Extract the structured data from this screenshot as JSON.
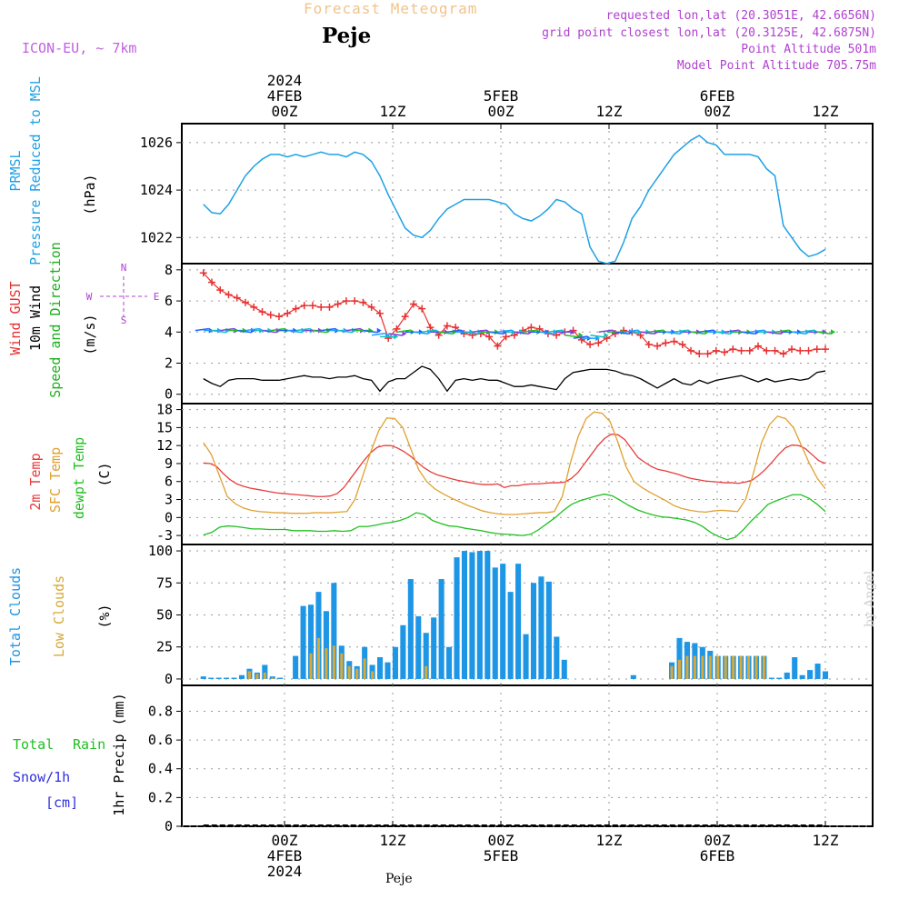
{
  "header": {
    "title": "Forecast Meteogram",
    "location": "Peje",
    "model": "ICON-EU, ~ 7km",
    "requested": "requested lon,lat (20.3051E, 42.6656N)",
    "grid_point": "grid point closest lon,lat (20.3125E, 42.6875N)",
    "point_altitude": "Point Altitude 501m",
    "model_altitude": "Model Point Altitude 705.75m"
  },
  "footer": {
    "location": "Peje",
    "credit": "by Angel"
  },
  "time_axis": {
    "unit": "hours since 2024-02-03 15Z",
    "range": [
      0,
      69
    ],
    "ticks": [
      {
        "t": 9,
        "line1": "00Z",
        "line2": "4FEB",
        "line3": "2024"
      },
      {
        "t": 21,
        "line1": "12Z",
        "line2": "",
        "line3": ""
      },
      {
        "t": 33,
        "line1": "00Z",
        "line2": "5FEB",
        "line3": ""
      },
      {
        "t": 45,
        "line1": "12Z",
        "line2": "",
        "line3": ""
      },
      {
        "t": 57,
        "line1": "00Z",
        "line2": "6FEB",
        "line3": ""
      },
      {
        "t": 69,
        "line1": "12Z",
        "line2": "",
        "line3": ""
      }
    ]
  },
  "colors": {
    "pressure": "#1ea0e6",
    "gust": "#e83030",
    "wind": "#000000",
    "temp": "#e83c3c",
    "sfc": "#e0a030",
    "dew": "#20c020",
    "total_clouds": "#1e96e6",
    "low_clouds": "#d8a838",
    "rain": "#20c020",
    "snow": "#3030e0",
    "compass": "#b040d0"
  },
  "chart_data": [
    {
      "type": "line",
      "panel": "pressure",
      "left_labels": [
        "PRMSL",
        "Pressure Reduced to MSL"
      ],
      "ylabel": "(hPa)",
      "yticks": [
        1022,
        1024,
        1026
      ],
      "ylim": [
        1020.9,
        1026.8
      ],
      "series": [
        {
          "name": "PRMSL",
          "values": [
            1023.4,
            1023.05,
            1023.0,
            1023.4,
            1024.0,
            1024.6,
            1025.0,
            1025.3,
            1025.5,
            1025.5,
            1025.4,
            1025.5,
            1025.4,
            1025.5,
            1025.6,
            1025.5,
            1025.5,
            1025.4,
            1025.6,
            1025.5,
            1025.2,
            1024.6,
            1023.8,
            1023.1,
            1022.4,
            1022.1,
            1022.0,
            1022.3,
            1022.8,
            1023.2,
            1023.4,
            1023.6,
            1023.6,
            1023.6,
            1023.6,
            1023.5,
            1023.4,
            1023.0,
            1022.8,
            1022.7,
            1022.9,
            1023.2,
            1023.6,
            1023.5,
            1023.2,
            1023.0,
            1021.6,
            1021.0,
            1020.9,
            1021.0,
            1021.8,
            1022.8,
            1023.3,
            1024.0,
            1024.5,
            1025.0,
            1025.5,
            1025.8,
            1026.1,
            1026.3,
            1026.0,
            1025.9,
            1025.5,
            1025.5,
            1025.5,
            1025.5,
            1025.4,
            1024.9,
            1024.6,
            1022.5,
            1022.0,
            1021.5,
            1021.2,
            1021.3,
            1021.5
          ]
        }
      ]
    },
    {
      "type": "line",
      "panel": "wind",
      "left_labels": [
        "Wind GUST",
        "10m Wind",
        "Speed and Direction"
      ],
      "ylabel": "(m/s)",
      "compass": {
        "n": "N",
        "s": "S",
        "e": "E",
        "w": "W"
      },
      "yticks": [
        0,
        2,
        4,
        6,
        8
      ],
      "ylim": [
        -0.6,
        8.4
      ],
      "series": [
        {
          "name": "Wind GUST",
          "values": [
            7.8,
            7.2,
            6.7,
            6.4,
            6.2,
            5.9,
            5.6,
            5.3,
            5.1,
            5.0,
            5.2,
            5.5,
            5.7,
            5.7,
            5.6,
            5.6,
            5.8,
            6.0,
            6.0,
            5.9,
            5.6,
            5.2,
            3.6,
            4.2,
            5.0,
            5.8,
            5.5,
            4.3,
            3.8,
            4.4,
            4.3,
            3.9,
            3.8,
            3.9,
            3.7,
            3.1,
            3.7,
            3.8,
            4.1,
            4.3,
            4.2,
            3.9,
            3.8,
            4.0,
            4.1,
            3.5,
            3.2,
            3.3,
            3.6,
            3.9,
            4.1,
            4.0,
            3.8,
            3.2,
            3.1,
            3.3,
            3.4,
            3.2,
            2.8,
            2.6,
            2.6,
            2.8,
            2.7,
            2.9,
            2.8,
            2.8,
            3.1,
            2.8,
            2.8,
            2.6,
            2.9,
            2.8,
            2.8,
            2.9,
            2.9
          ]
        },
        {
          "name": "10m Wind",
          "values": [
            1.0,
            0.7,
            0.5,
            0.9,
            1.0,
            1.0,
            1.0,
            0.9,
            0.9,
            0.9,
            1.0,
            1.1,
            1.2,
            1.1,
            1.1,
            1.0,
            1.1,
            1.1,
            1.2,
            1.0,
            0.9,
            0.2,
            0.8,
            1.0,
            1.0,
            1.4,
            1.8,
            1.6,
            1.0,
            0.2,
            0.9,
            1.0,
            0.9,
            1.0,
            0.9,
            0.9,
            0.7,
            0.5,
            0.5,
            0.6,
            0.5,
            0.4,
            0.3,
            1.0,
            1.4,
            1.5,
            1.6,
            1.6,
            1.6,
            1.5,
            1.3,
            1.2,
            1.0,
            0.7,
            0.4,
            0.7,
            1.0,
            0.7,
            0.6,
            0.9,
            0.7,
            0.9,
            1.0,
            1.1,
            1.2,
            1.0,
            0.8,
            1.0,
            0.8,
            0.9,
            1.0,
            0.9,
            1.0,
            1.4,
            1.5
          ]
        },
        {
          "name": "Wind barbs",
          "values": [
            4.1,
            4.1,
            4.1,
            4.1,
            4.1,
            4.1,
            4.1,
            4.1,
            4.1,
            4.1,
            4.1,
            4.1,
            4.1,
            4.1,
            4.1,
            4.1,
            4.1,
            4.1,
            4.1,
            4.1,
            4.1,
            3.8,
            3.7,
            3.9,
            4.0,
            4.0,
            4.0,
            4.0,
            4.0,
            4.0,
            4.0,
            4.0,
            4.0,
            4.0,
            4.0,
            4.0,
            4.0,
            4.0,
            4.0,
            4.0,
            4.0,
            4.0,
            4.0,
            4.0,
            3.8,
            3.6,
            3.6,
            3.8,
            4.0,
            4.0,
            4.0,
            4.0,
            4.0,
            4.0,
            4.0,
            4.0,
            4.0,
            4.0,
            4.0,
            4.0,
            4.0,
            4.0,
            4.0,
            4.0,
            4.0,
            4.0,
            4.0,
            4.0,
            4.0,
            4.0,
            4.0,
            4.0,
            4.0,
            4.0,
            4.0
          ]
        }
      ]
    },
    {
      "type": "line",
      "panel": "temperature",
      "left_labels": [
        "2m Temp",
        "SFC Temp",
        "dewpt Temp"
      ],
      "ylabel": "(C)",
      "yticks": [
        -3,
        0,
        3,
        6,
        9,
        12,
        15,
        18
      ],
      "ylim": [
        -4.5,
        19
      ],
      "series": [
        {
          "name": "2m Temp",
          "values": [
            9.1,
            9.0,
            8.5,
            7.3,
            6.3,
            5.6,
            5.2,
            4.9,
            4.7,
            4.5,
            4.3,
            4.1,
            4.0,
            3.9,
            3.8,
            3.7,
            3.6,
            3.5,
            3.5,
            3.6,
            4.0,
            5.0,
            6.5,
            8.0,
            9.5,
            10.8,
            11.7,
            12.0,
            12.0,
            11.6,
            11.0,
            10.2,
            9.2,
            8.3,
            7.6,
            7.1,
            6.8,
            6.5,
            6.2,
            6.0,
            5.8,
            5.6,
            5.5,
            5.5,
            5.6,
            5.0,
            5.3,
            5.3,
            5.5,
            5.6,
            5.6,
            5.7,
            5.8,
            5.8,
            5.9,
            6.5,
            7.5,
            9.0,
            10.5,
            12.0,
            13.2,
            13.9,
            13.8,
            13.0,
            11.5,
            10.0,
            9.2,
            8.5,
            8.0,
            7.8,
            7.5,
            7.2,
            6.8,
            6.5,
            6.3,
            6.1,
            6.0,
            5.9,
            5.8,
            5.8,
            5.7,
            5.9,
            6.2,
            7.0,
            8.0,
            9.2,
            10.5,
            11.6,
            12.1,
            12.0,
            11.5,
            10.5,
            9.5,
            9.0
          ]
        },
        {
          "name": "SFC Temp",
          "values": [
            12.5,
            10.5,
            7.0,
            3.5,
            2.3,
            1.6,
            1.2,
            1.0,
            0.9,
            0.8,
            0.8,
            0.7,
            0.7,
            0.7,
            0.8,
            0.8,
            0.8,
            0.9,
            1.0,
            3.0,
            7.0,
            11.0,
            14.5,
            16.6,
            16.5,
            15.0,
            11.5,
            8.0,
            6.0,
            4.8,
            4.0,
            3.3,
            2.7,
            2.1,
            1.6,
            1.1,
            0.8,
            0.6,
            0.5,
            0.5,
            0.6,
            0.7,
            0.8,
            0.8,
            1.0,
            3.5,
            9.0,
            13.5,
            16.5,
            17.6,
            17.4,
            16.0,
            12.5,
            8.5,
            6.0,
            5.0,
            4.2,
            3.5,
            2.8,
            2.0,
            1.5,
            1.2,
            1.0,
            0.9,
            1.1,
            1.2,
            1.1,
            1.0,
            3.0,
            7.5,
            12.5,
            15.5,
            16.9,
            16.5,
            15.0,
            12.0,
            9.0,
            6.5,
            4.8
          ]
        },
        {
          "name": "dewpt Temp",
          "values": [
            -2.9,
            -2.5,
            -1.6,
            -1.4,
            -1.5,
            -1.7,
            -1.9,
            -1.9,
            -2.0,
            -2.0,
            -2.0,
            -2.2,
            -2.2,
            -2.2,
            -2.3,
            -2.3,
            -2.2,
            -2.3,
            -2.2,
            -1.5,
            -1.5,
            -1.3,
            -1.0,
            -0.8,
            -0.5,
            0.0,
            0.8,
            0.5,
            -0.5,
            -1.0,
            -1.4,
            -1.5,
            -1.8,
            -2.0,
            -2.2,
            -2.5,
            -2.7,
            -2.8,
            -2.9,
            -3.0,
            -2.8,
            -2.0,
            -1.0,
            0.0,
            1.2,
            2.2,
            2.8,
            3.2,
            3.6,
            3.9,
            3.6,
            2.8,
            2.0,
            1.3,
            0.8,
            0.4,
            0.1,
            0.0,
            -0.2,
            -0.4,
            -0.8,
            -1.5,
            -2.5,
            -3.2,
            -3.7,
            -3.3,
            -2.0,
            -0.5,
            0.8,
            2.2,
            2.8,
            3.3,
            3.8,
            3.8,
            3.2,
            2.2,
            1.0
          ]
        }
      ]
    },
    {
      "type": "bar",
      "panel": "clouds",
      "left_labels": [
        "Total Clouds",
        "Low Clouds"
      ],
      "ylabel": "(%)",
      "yticks": [
        0,
        25,
        50,
        75,
        100
      ],
      "ylim": [
        -5,
        105
      ],
      "series": [
        {
          "name": "Total Clouds",
          "values": [
            2,
            1,
            1,
            1,
            1,
            3,
            8,
            5,
            11,
            2,
            1,
            0,
            18,
            57,
            58,
            68,
            53,
            75,
            26,
            14,
            10,
            25,
            11,
            17,
            13,
            25,
            42,
            78,
            49,
            36,
            48,
            78,
            25,
            95,
            100,
            99,
            100,
            100,
            87,
            90,
            68,
            90,
            35,
            75,
            80,
            76,
            33,
            15,
            0,
            0,
            0,
            0,
            0,
            0,
            0,
            0,
            3,
            0,
            0,
            0,
            0,
            13,
            32,
            29,
            28,
            25,
            22,
            18,
            18,
            18,
            18,
            18,
            18,
            18,
            1,
            1,
            5,
            17,
            3,
            7,
            12,
            6
          ]
        },
        {
          "name": "Low Clouds",
          "values": [
            0,
            0,
            0,
            0,
            0,
            0,
            6,
            4,
            5,
            1,
            0,
            0,
            0,
            0,
            20,
            32,
            24,
            26,
            20,
            10,
            8,
            16,
            6,
            0,
            0,
            0,
            0,
            0,
            0,
            10,
            0,
            0,
            0,
            0,
            0,
            0,
            0,
            0,
            0,
            0,
            0,
            0,
            0,
            0,
            0,
            0,
            0,
            0,
            0,
            0,
            0,
            0,
            0,
            0,
            0,
            0,
            0,
            0,
            0,
            0,
            0,
            10,
            15,
            18,
            18,
            18,
            18,
            18,
            18,
            18,
            18,
            18,
            18,
            18,
            0,
            0,
            0,
            0,
            0,
            0,
            0,
            0
          ]
        }
      ]
    },
    {
      "type": "line",
      "panel": "precipitation",
      "left_labels": [
        "Total",
        "Rain",
        "Snow/1h",
        "[cm]"
      ],
      "ylabel": "1hr Precip (mm)",
      "yticks": [
        0,
        0.2,
        0.4,
        0.6,
        0.8
      ],
      "ylim": [
        0,
        0.98
      ],
      "series": [
        {
          "name": "1hr Precip",
          "values": [
            0,
            0,
            0,
            0,
            0,
            0,
            0,
            0,
            0,
            0,
            0,
            0,
            0,
            0,
            0,
            0,
            0,
            0,
            0,
            0,
            0,
            0,
            0,
            0,
            0,
            0,
            0,
            0,
            0,
            0,
            0,
            0,
            0,
            0,
            0,
            0,
            0,
            0,
            0,
            0,
            0,
            0,
            0,
            0,
            0,
            0,
            0,
            0,
            0,
            0,
            0,
            0,
            0,
            0,
            0,
            0,
            0,
            0,
            0,
            0,
            0,
            0,
            0,
            0,
            0,
            0,
            0,
            0,
            0,
            0,
            0,
            0,
            0,
            0,
            0
          ]
        }
      ]
    }
  ]
}
